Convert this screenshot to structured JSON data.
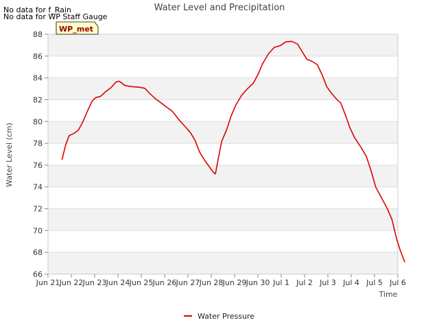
{
  "notes": [
    "No data for f_Rain",
    "No data for WP Staff Gauge"
  ],
  "site_badge": "WP_met",
  "colors": {
    "series": "#dd0000",
    "band": "#f2f2f2",
    "grid": "#dddddd",
    "badge_bg": "#ffffcc",
    "badge_text": "#990000"
  },
  "chart_data": {
    "type": "line",
    "title": "Water Level and Precipitation",
    "xlabel": "Time",
    "ylabel": "Water Level (cm)",
    "ylim": [
      66,
      88
    ],
    "xlim": [
      0,
      15
    ],
    "yticks": [
      66,
      68,
      70,
      72,
      74,
      76,
      78,
      80,
      82,
      84,
      86,
      88
    ],
    "xtick_labels": [
      "Jun 21",
      "Jun 22",
      "Jun 23",
      "Jun 24",
      "Jun 25",
      "Jun 26",
      "Jun 27",
      "Jun 28",
      "Jun 29",
      "Jun 30",
      "Jul 1",
      "Jul 2",
      "Jul 3",
      "Jul 4",
      "Jul 5",
      "Jul 6"
    ],
    "x_units": "days since Jun 21",
    "grid": true,
    "legend": "bottom-center",
    "series": [
      {
        "name": "Water Pressure",
        "points": [
          [
            0.6,
            76.5
          ],
          [
            0.75,
            77.8
          ],
          [
            0.9,
            78.7
          ],
          [
            1.1,
            78.9
          ],
          [
            1.3,
            79.2
          ],
          [
            1.5,
            80.0
          ],
          [
            1.7,
            81.0
          ],
          [
            1.9,
            81.9
          ],
          [
            2.05,
            82.2
          ],
          [
            2.25,
            82.3
          ],
          [
            2.45,
            82.7
          ],
          [
            2.7,
            83.1
          ],
          [
            2.9,
            83.6
          ],
          [
            3.05,
            83.7
          ],
          [
            3.3,
            83.3
          ],
          [
            3.6,
            83.2
          ],
          [
            3.9,
            83.15
          ],
          [
            4.15,
            83.05
          ],
          [
            4.35,
            82.6
          ],
          [
            4.6,
            82.1
          ],
          [
            4.85,
            81.7
          ],
          [
            5.1,
            81.3
          ],
          [
            5.35,
            80.9
          ],
          [
            5.6,
            80.2
          ],
          [
            5.85,
            79.6
          ],
          [
            6.1,
            79.0
          ],
          [
            6.3,
            78.3
          ],
          [
            6.5,
            77.2
          ],
          [
            6.7,
            76.5
          ],
          [
            6.9,
            75.9
          ],
          [
            7.1,
            75.3
          ],
          [
            7.18,
            75.2
          ],
          [
            7.3,
            76.6
          ],
          [
            7.45,
            78.2
          ],
          [
            7.65,
            79.2
          ],
          [
            7.85,
            80.5
          ],
          [
            8.05,
            81.5
          ],
          [
            8.3,
            82.4
          ],
          [
            8.55,
            83.0
          ],
          [
            8.8,
            83.5
          ],
          [
            9.0,
            84.3
          ],
          [
            9.2,
            85.3
          ],
          [
            9.45,
            86.2
          ],
          [
            9.7,
            86.8
          ],
          [
            9.95,
            86.95
          ],
          [
            10.2,
            87.3
          ],
          [
            10.45,
            87.35
          ],
          [
            10.7,
            87.1
          ],
          [
            10.9,
            86.4
          ],
          [
            11.1,
            85.7
          ],
          [
            11.3,
            85.55
          ],
          [
            11.55,
            85.2
          ],
          [
            11.75,
            84.3
          ],
          [
            11.95,
            83.2
          ],
          [
            12.15,
            82.6
          ],
          [
            12.35,
            82.1
          ],
          [
            12.55,
            81.7
          ],
          [
            12.75,
            80.6
          ],
          [
            12.95,
            79.4
          ],
          [
            13.15,
            78.5
          ],
          [
            13.4,
            77.7
          ],
          [
            13.65,
            76.8
          ],
          [
            13.85,
            75.5
          ],
          [
            14.05,
            74.0
          ],
          [
            14.3,
            73.0
          ],
          [
            14.55,
            72.0
          ],
          [
            14.75,
            71.0
          ],
          [
            14.95,
            69.2
          ],
          [
            15.1,
            68.2
          ],
          [
            15.3,
            67.1
          ]
        ]
      }
    ]
  }
}
